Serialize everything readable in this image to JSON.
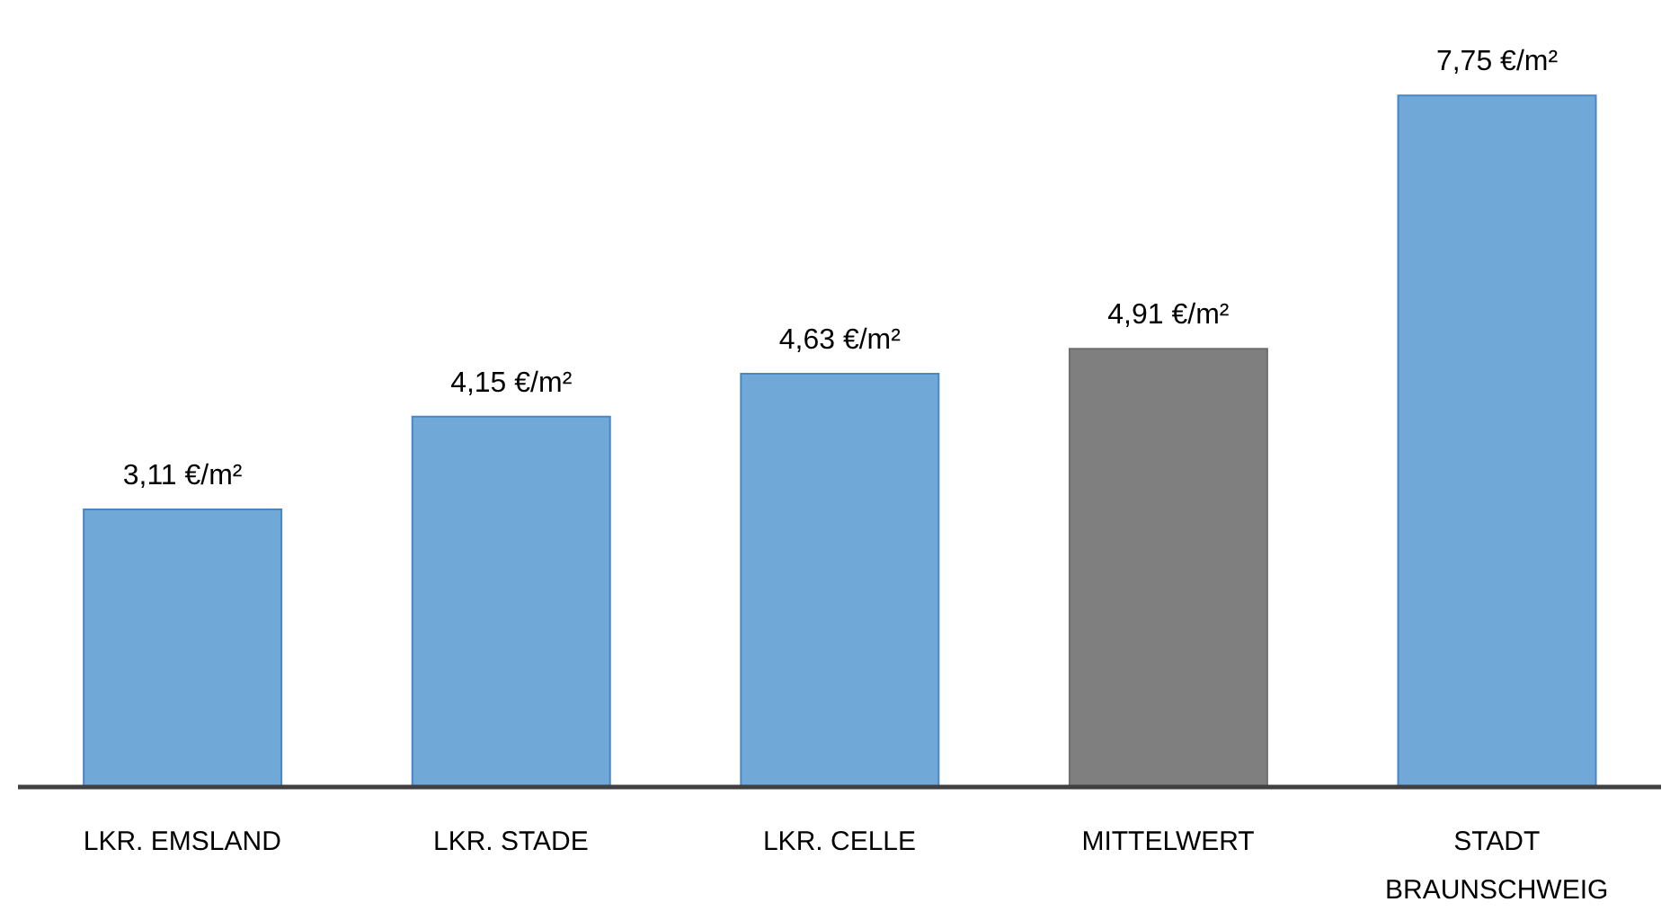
{
  "chart_data": {
    "type": "bar",
    "categories": [
      "LKR. EMSLAND",
      "LKR. STADE",
      "LKR. CELLE",
      "MITTELWERT",
      "STADT BRAUNSCHWEIG"
    ],
    "values": [
      3.11,
      4.15,
      4.63,
      4.91,
      7.75
    ],
    "colors": [
      "#70a8d8",
      "#70a8d8",
      "#70a8d8",
      "#7f7f7f",
      "#70a8d8"
    ],
    "value_labels": [
      "3,11 €/m²",
      "4,15 €/m²",
      "4,63 €/m²",
      "4,91 €/m²",
      "7,75 €/m²"
    ],
    "grid": false,
    "legend": false
  }
}
